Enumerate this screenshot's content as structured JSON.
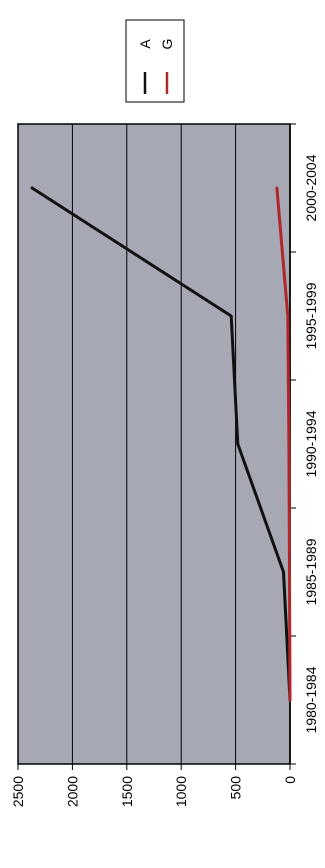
{
  "chart_data": {
    "type": "line",
    "orientation": "rotated-90-clockwise",
    "categories": [
      "1980-1984",
      "1985-1989",
      "1990-1994",
      "1995-1999",
      "2000-2004"
    ],
    "series": [
      {
        "name": "A",
        "color": "#111111",
        "values": [
          0,
          60,
          480,
          540,
          2370
        ]
      },
      {
        "name": "G",
        "color": "#b0262b",
        "values": [
          0,
          5,
          10,
          20,
          120
        ]
      }
    ],
    "ylim": [
      0,
      2500
    ],
    "yticks": [
      "0",
      "500",
      "1000",
      "1500",
      "2000",
      "2500"
    ],
    "grid": true,
    "legend_position": "top-right",
    "plot_background": "#a6a9b4"
  }
}
